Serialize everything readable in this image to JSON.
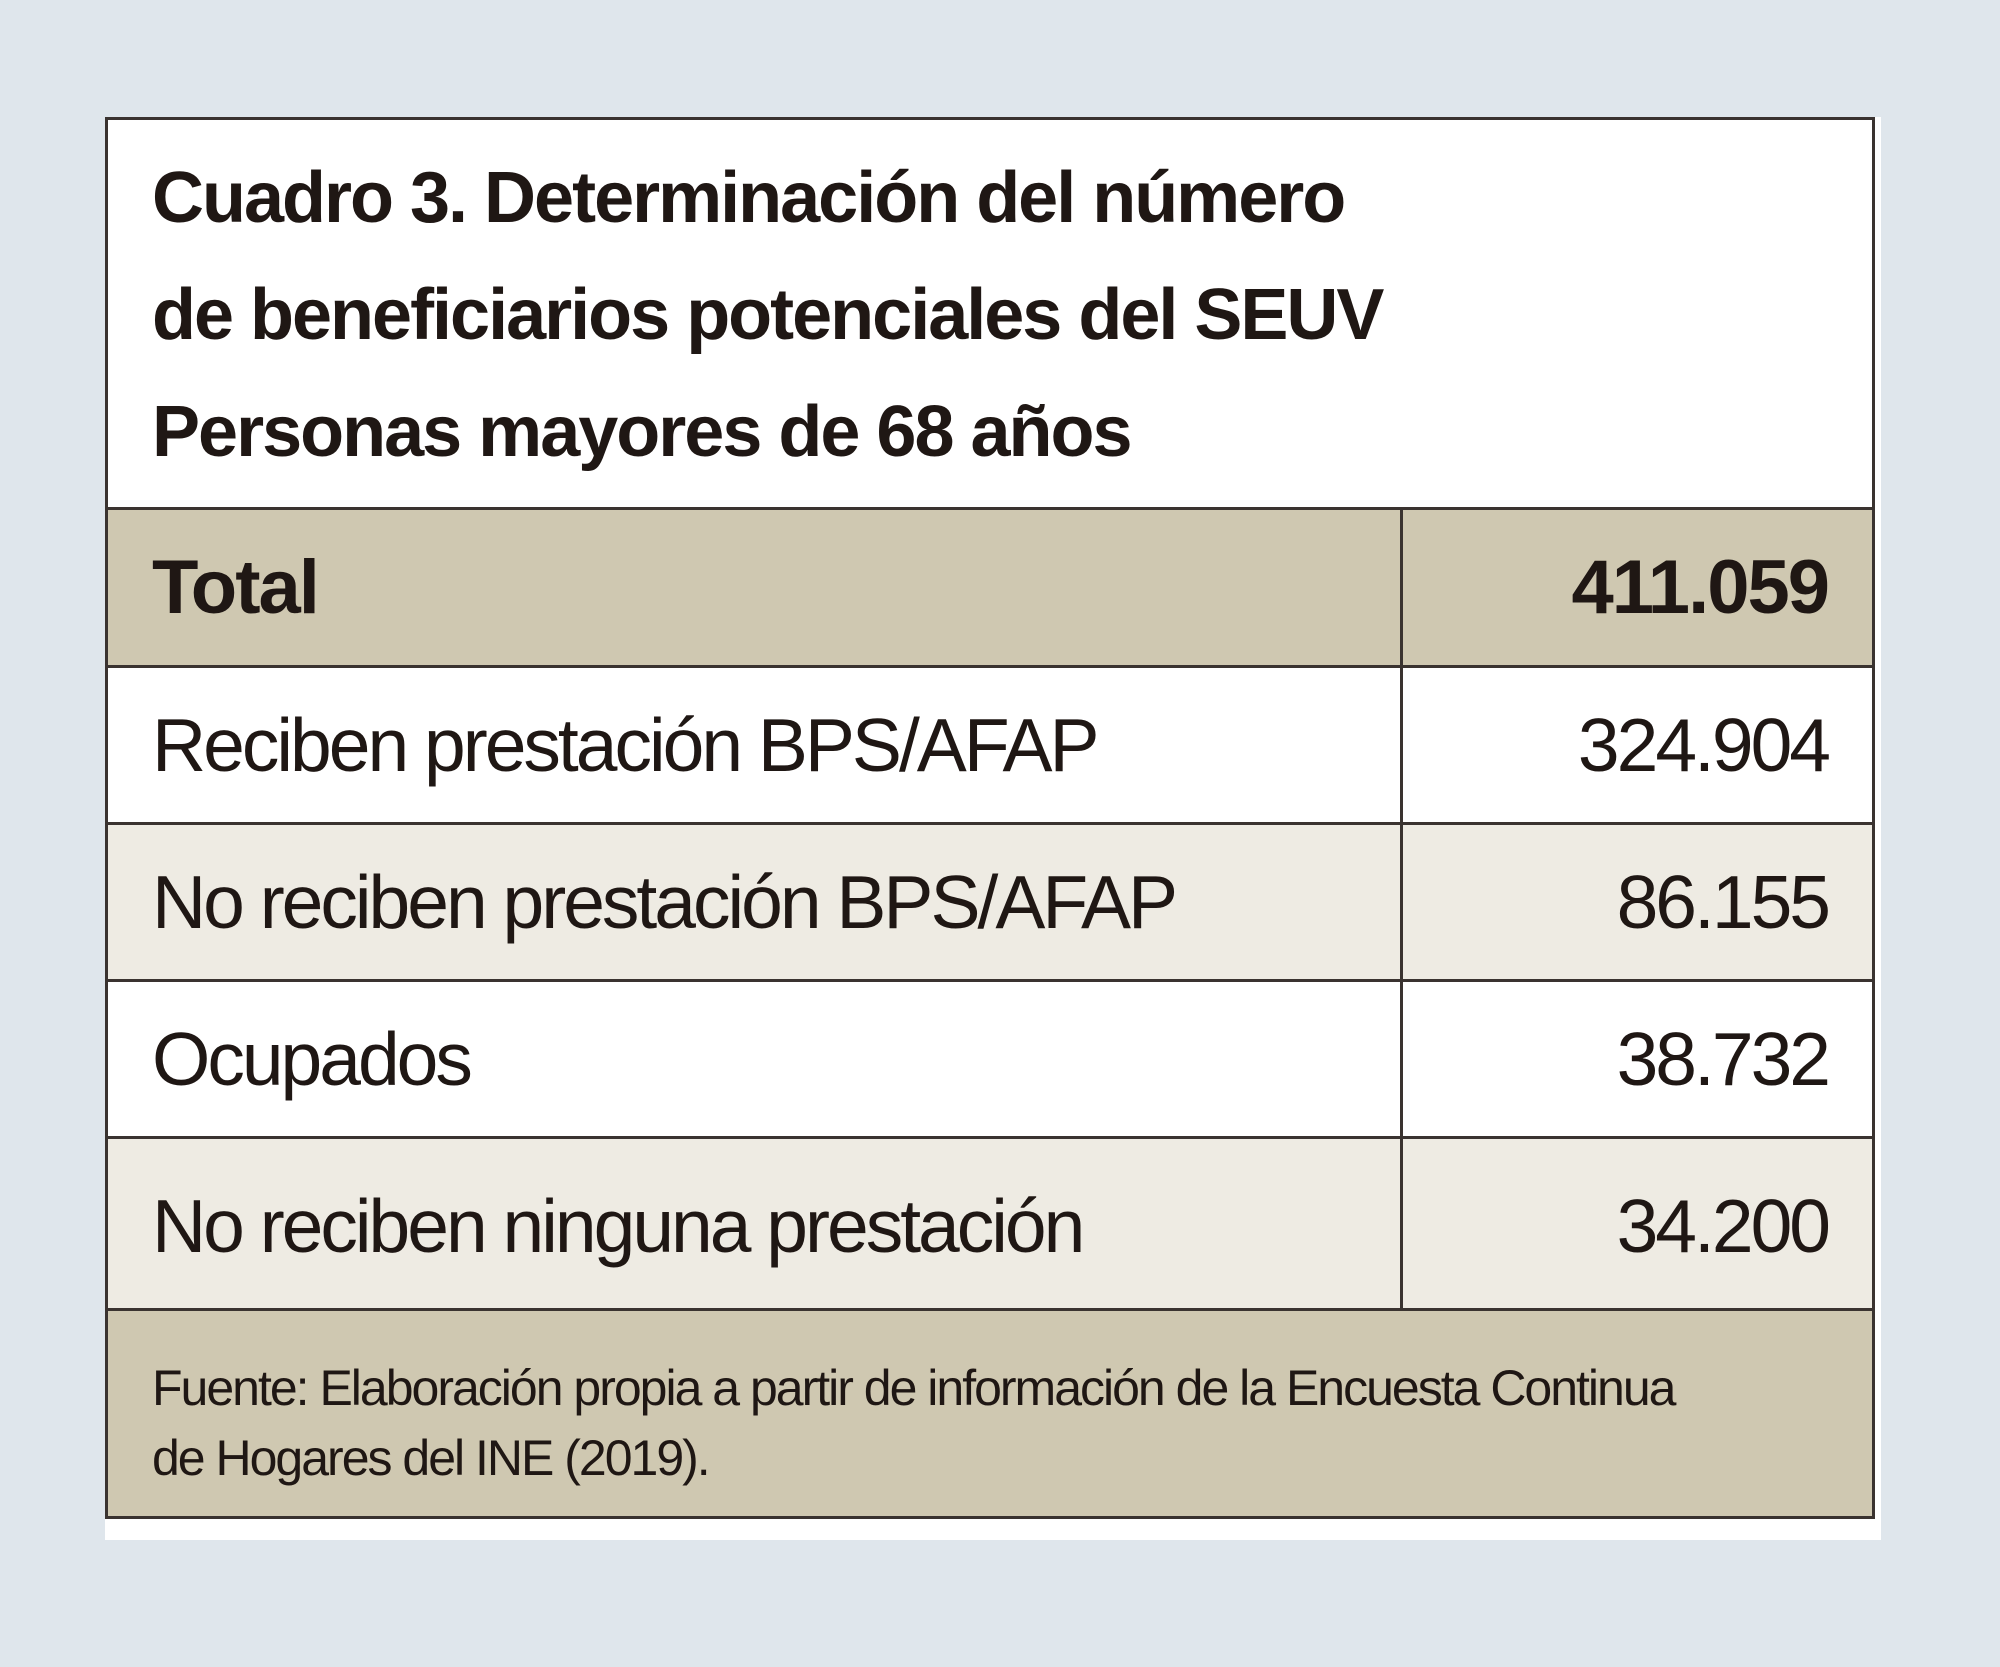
{
  "title": {
    "line1": "Cuadro 3. Determinación del número",
    "line2": "de beneficiarios potenciales del SEUV",
    "line3": "Personas mayores de 68 años"
  },
  "rows": [
    {
      "label": "Total",
      "value": "411.059"
    },
    {
      "label": "Reciben prestación BPS/AFAP",
      "value": "324.904"
    },
    {
      "label": "No reciben prestación BPS/AFAP",
      "value": "86.155"
    },
    {
      "label": "Ocupados",
      "value": "38.732"
    },
    {
      "label": "No reciben ninguna prestación",
      "value": "34.200"
    }
  ],
  "footer": {
    "line1": "Fuente: Elaboración propia a partir de información de la Encuesta Continua",
    "line2": "de Hogares del INE (2019)."
  }
}
